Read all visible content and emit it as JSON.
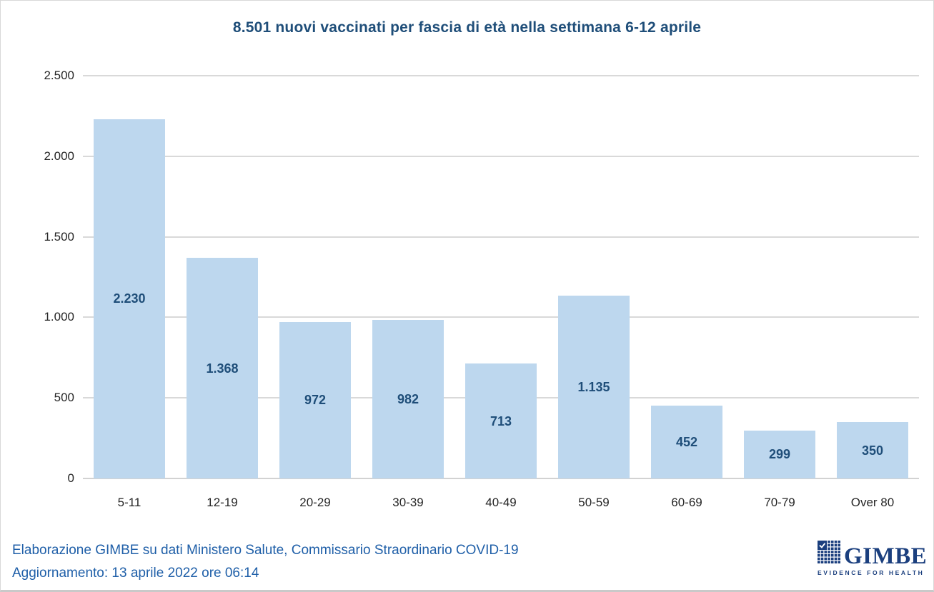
{
  "chart_data": {
    "type": "bar",
    "title": "8.501 nuovi vaccinati per fascia di età nella settimana 6-12 aprile",
    "total_new_vaccinated": "8.501",
    "week": "6-12 aprile",
    "categories": [
      "5-11",
      "12-19",
      "20-29",
      "30-39",
      "40-49",
      "50-59",
      "60-69",
      "70-79",
      "Over 80"
    ],
    "values": [
      2230,
      1368,
      972,
      982,
      713,
      1135,
      452,
      299,
      350
    ],
    "value_labels": [
      "2.230",
      "1.368",
      "972",
      "982",
      "713",
      "1.135",
      "452",
      "299",
      "350"
    ],
    "xlabel": "",
    "ylabel": "",
    "ylim": [
      0,
      2500
    ],
    "y_tick_values": [
      2500,
      2000,
      1500,
      1000,
      500,
      0
    ],
    "y_tick_labels": [
      "2.500",
      "2.000",
      "1.500",
      "1.000",
      "500",
      "0"
    ],
    "grid": true,
    "legend": false,
    "bar_label_position": "inside-center"
  },
  "footer": {
    "line1": "Elaborazione GIMBE su dati Ministero Salute, Commissario Straordinario COVID-19",
    "line2": "Aggiornamento: 13 aprile 2022 ore 06:14"
  },
  "logo": {
    "name": "GIMBE",
    "tagline": "EVIDENCE FOR HEALTH"
  },
  "colors": {
    "title_color": "#1F4E79",
    "bar": "#BDD7EE",
    "bar_label": "#1F4E79",
    "gridline": "#D9D9D9",
    "axis_text": "#262626",
    "footer_color": "#1F5FA8",
    "logo_color": "#1B3F7E"
  }
}
